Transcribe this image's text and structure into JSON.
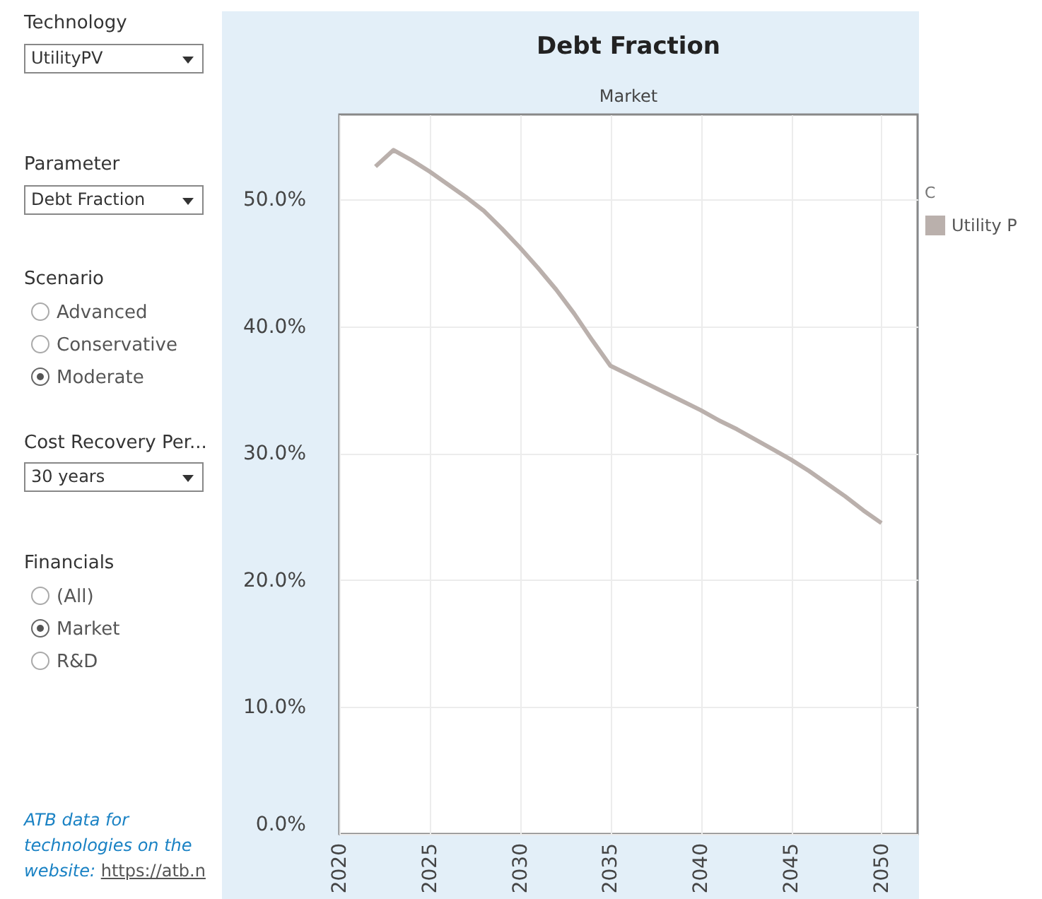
{
  "chart_data": {
    "type": "line",
    "title": "Debt Fraction",
    "subtitle": "Market",
    "legend_title": "C",
    "x": [
      2022,
      2023,
      2024,
      2025,
      2026,
      2027,
      2028,
      2029,
      2030,
      2031,
      2032,
      2033,
      2034,
      2035,
      2036,
      2037,
      2038,
      2039,
      2040,
      2041,
      2042,
      2043,
      2044,
      2045,
      2046,
      2047,
      2048,
      2049,
      2050
    ],
    "series": [
      {
        "name": "Utility P",
        "color": "#bab0ac",
        "values": [
          52.6,
          53.9,
          53.1,
          52.2,
          51.2,
          50.2,
          49.1,
          47.7,
          46.2,
          44.6,
          42.9,
          41.0,
          38.9,
          36.9,
          36.2,
          35.5,
          34.8,
          34.1,
          33.4,
          32.6,
          31.9,
          31.1,
          30.3,
          29.5,
          28.6,
          27.6,
          26.6,
          25.5,
          24.5
        ]
      }
    ],
    "xlim": [
      2020,
      2052
    ],
    "xticks": [
      2020,
      2025,
      2030,
      2035,
      2040,
      2045,
      2050
    ],
    "ylim": [
      0,
      56.7
    ],
    "yticks": [
      {
        "value": 0,
        "label": "0.0%"
      },
      {
        "value": 10,
        "label": "10.0%"
      },
      {
        "value": 20,
        "label": "20.0%"
      },
      {
        "value": 30,
        "label": "30.0%"
      },
      {
        "value": 40,
        "label": "40.0%"
      },
      {
        "value": 50,
        "label": "50.0%"
      }
    ],
    "grid": true,
    "legend": "top right",
    "line_style": "solid",
    "annotations": [
      "Technology",
      "UtilityPV",
      "Parameter",
      "Debt Fraction",
      "Scenario",
      "Advanced",
      "Conservative",
      "Moderate",
      "Cost Recovery Per...",
      "30 years",
      "Financials",
      "(All)",
      "Market",
      "R&D",
      "ATB data for technologies on the website:",
      "https://atb.n"
    ]
  }
}
